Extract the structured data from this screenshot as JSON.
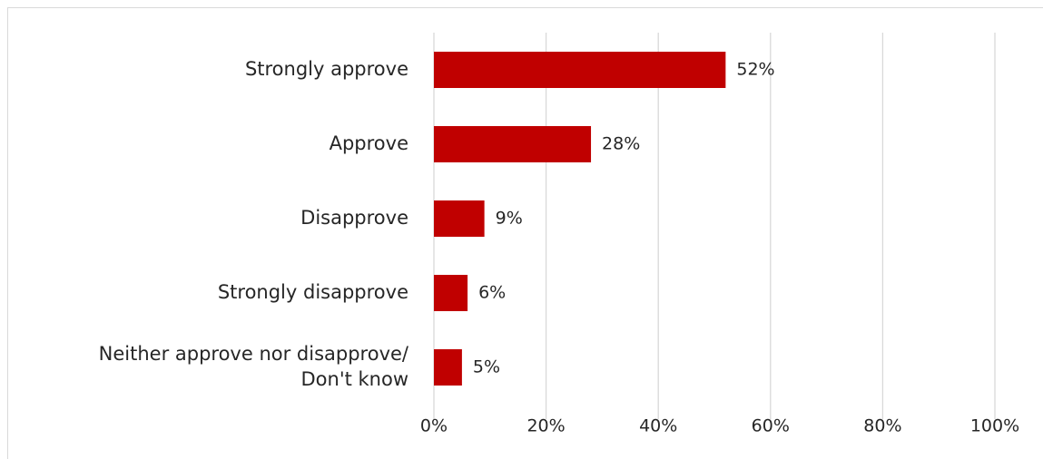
{
  "chart_data": {
    "type": "bar",
    "orientation": "horizontal",
    "categories": [
      [
        "Strongly approve"
      ],
      [
        "Approve"
      ],
      [
        "Disapprove"
      ],
      [
        "Strongly disapprove"
      ],
      [
        "Neither approve nor disapprove/",
        "Don't know"
      ]
    ],
    "values": [
      52,
      28,
      9,
      6,
      5
    ],
    "data_labels": [
      "52%",
      "28%",
      "9%",
      "6%",
      "5%"
    ],
    "xlim": [
      0,
      100
    ],
    "ticks": [
      0,
      20,
      40,
      60,
      80,
      100
    ],
    "tick_labels": [
      "0%",
      "20%",
      "40%",
      "60%",
      "80%",
      "100%"
    ],
    "bar_color": "#c00000",
    "grid": true,
    "gridline_color": "#d9d9d9",
    "legend": "none"
  }
}
